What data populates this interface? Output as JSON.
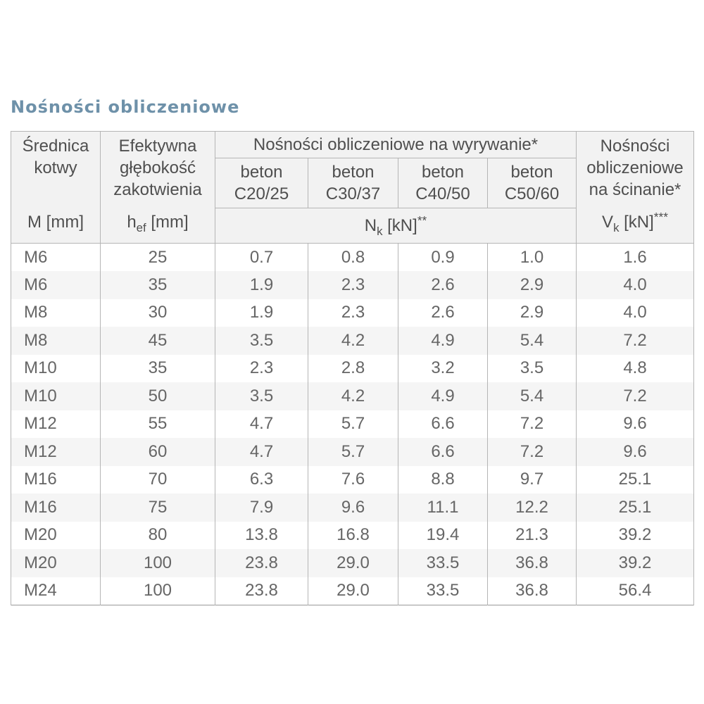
{
  "title": "Nośności obliczeniowe",
  "colors": {
    "accent": "#6e91a9",
    "header_bg": "#f2f2f2",
    "stripe": "#f5f5f5",
    "frame": "#999999",
    "inner": "#b5b5b5",
    "header_text": "#4f4f4f",
    "data_text": "#666666"
  },
  "table": {
    "anchor_col": {
      "label": "Średnica\nkotwy",
      "unit": "M [mm]"
    },
    "depth_col": {
      "label": "Efektywna\ngłębokość\nzakotwienia",
      "unit_base": "h",
      "unit_sub": "ef",
      "unit_rest": " [mm]"
    },
    "pullout_header": "Nośności obliczeniowe na wyrywanie*",
    "concrete_classes": [
      "beton\nC20/25",
      "beton\nC30/37",
      "beton\nC40/50",
      "beton\nC50/60"
    ],
    "nk_unit": {
      "unit_base": "N",
      "unit_sub": "k",
      "unit_rest": " [kN]",
      "unit_stars": "**"
    },
    "shear_col": {
      "label": "Nośności\nobliczeniowe\nna ścinanie*",
      "unit_base": "V",
      "unit_sub": "k",
      "unit_rest": " [kN]",
      "unit_stars": "***"
    },
    "rows": [
      {
        "m": "M6",
        "hef": "25",
        "nk": [
          "0.7",
          "0.8",
          "0.9",
          "1.0"
        ],
        "vk": "1.6"
      },
      {
        "m": "M6",
        "hef": "35",
        "nk": [
          "1.9",
          "2.3",
          "2.6",
          "2.9"
        ],
        "vk": "4.0"
      },
      {
        "m": "M8",
        "hef": "30",
        "nk": [
          "1.9",
          "2.3",
          "2.6",
          "2.9"
        ],
        "vk": "4.0"
      },
      {
        "m": "M8",
        "hef": "45",
        "nk": [
          "3.5",
          "4.2",
          "4.9",
          "5.4"
        ],
        "vk": "7.2"
      },
      {
        "m": "M10",
        "hef": "35",
        "nk": [
          "2.3",
          "2.8",
          "3.2",
          "3.5"
        ],
        "vk": "4.8"
      },
      {
        "m": "M10",
        "hef": "50",
        "nk": [
          "3.5",
          "4.2",
          "4.9",
          "5.4"
        ],
        "vk": "7.2"
      },
      {
        "m": "M12",
        "hef": "55",
        "nk": [
          "4.7",
          "5.7",
          "6.6",
          "7.2"
        ],
        "vk": "9.6"
      },
      {
        "m": "M12",
        "hef": "60",
        "nk": [
          "4.7",
          "5.7",
          "6.6",
          "7.2"
        ],
        "vk": "9.6"
      },
      {
        "m": "M16",
        "hef": "70",
        "nk": [
          "6.3",
          "7.6",
          "8.8",
          "9.7"
        ],
        "vk": "25.1"
      },
      {
        "m": "M16",
        "hef": "75",
        "nk": [
          "7.9",
          "9.6",
          "11.1",
          "12.2"
        ],
        "vk": "25.1"
      },
      {
        "m": "M20",
        "hef": "80",
        "nk": [
          "13.8",
          "16.8",
          "19.4",
          "21.3"
        ],
        "vk": "39.2"
      },
      {
        "m": "M20",
        "hef": "100",
        "nk": [
          "23.8",
          "29.0",
          "33.5",
          "36.8"
        ],
        "vk": "39.2"
      },
      {
        "m": "M24",
        "hef": "100",
        "nk": [
          "23.8",
          "29.0",
          "33.5",
          "36.8"
        ],
        "vk": "56.4"
      }
    ]
  }
}
